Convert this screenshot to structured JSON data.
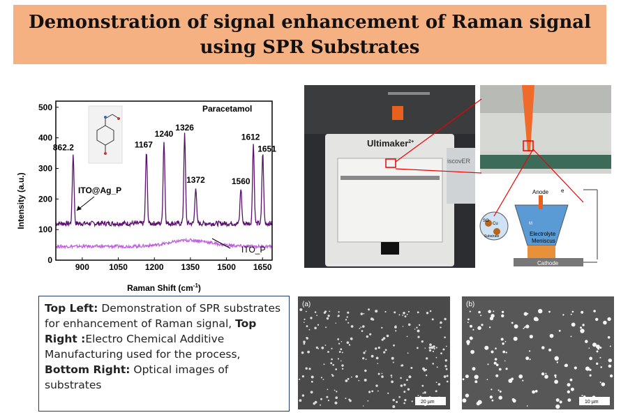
{
  "title": {
    "line1": "Demonstration of signal enhancement of Raman signal",
    "line2": "using SPR Substrates"
  },
  "chart_data": {
    "type": "line",
    "xlabel": "Raman Shift (cm",
    "xlabel_sup": "-1",
    "xlabel_end": ")",
    "ylabel": "Intensity (a.u.)",
    "xlim": [
      790,
      1690
    ],
    "ylim": [
      0,
      520
    ],
    "xticks": [
      900,
      1050,
      1200,
      1350,
      1500,
      1650
    ],
    "yticks": [
      0,
      100,
      200,
      300,
      400,
      500
    ],
    "legend_text": "Paracetamol",
    "series": [
      {
        "name": "ITO@Ag_P",
        "color": "#5b0f6e",
        "baseline": 120,
        "peaks": [
          {
            "x": 862.2,
            "y": 345
          },
          {
            "x": 1167,
            "y": 355
          },
          {
            "x": 1240,
            "y": 390
          },
          {
            "x": 1326,
            "y": 410
          },
          {
            "x": 1372,
            "y": 240
          },
          {
            "x": 1560,
            "y": 235
          },
          {
            "x": 1612,
            "y": 380
          },
          {
            "x": 1651,
            "y": 350
          }
        ]
      },
      {
        "name": "ITO_P",
        "color": "#c060e0",
        "baseline": 45,
        "peaks": []
      }
    ],
    "peak_labels": [
      "862.2",
      "1167",
      "1240",
      "1326",
      "1372",
      "1560",
      "1612",
      "1651"
    ]
  },
  "caption": {
    "top_left_label": "Top Left:",
    "top_left_text": " Demonstration of SPR substrates for enhancement of Raman signal, ",
    "top_right_label": "Top Right :",
    "top_right_text": "Electro Chemical Additive Manufacturing used for the process, ",
    "bottom_right_label": "Bottom Right:",
    "bottom_right_text": " Optical images of substrates"
  },
  "printer": {
    "brand": "Ultimaker",
    "brand_sup": "2+",
    "side_text": "iscovER"
  },
  "schematic": {
    "anode": "Anode",
    "electron": "e",
    "electrolyte1": "Electrolyte",
    "electrolyte2": "Meniscus",
    "cathode": "Cathode",
    "substrate": "Substrate",
    "ion": "M",
    "so4": "SO",
    "cu": "Cu"
  },
  "sem": {
    "a_label": "(a)",
    "b_label": "(b)",
    "a_scale": "20 µm",
    "b_scale": "10 µm"
  }
}
